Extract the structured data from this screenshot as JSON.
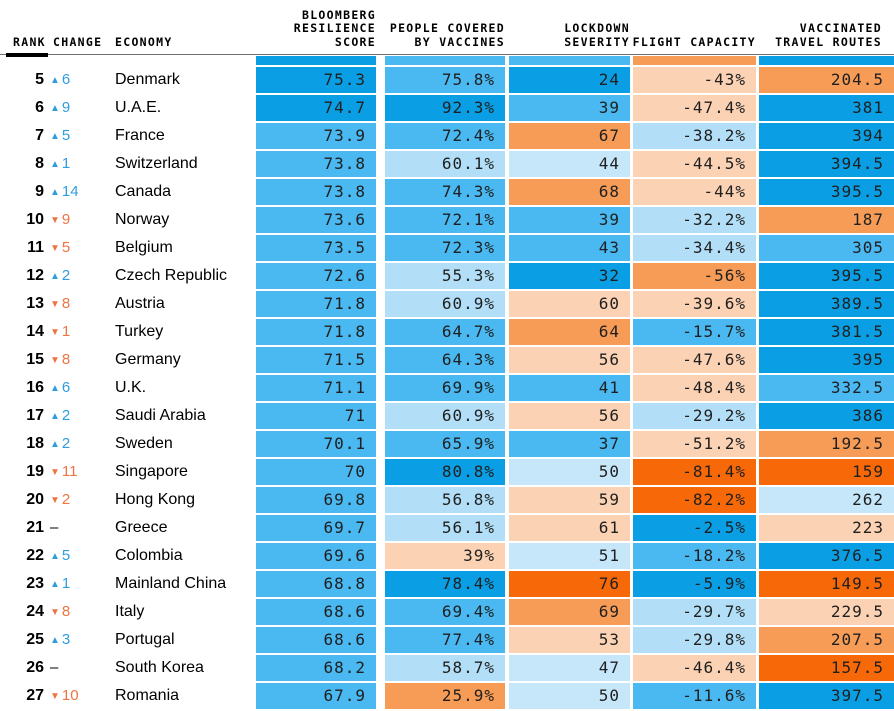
{
  "palette": {
    "b1": "#0a9fe4",
    "b2": "#4ab8f1",
    "b3": "#b2dff7",
    "b4": "#c6e7fa",
    "o1": "#f76908",
    "o2": "#f79c57",
    "o3": "#fbd2b3",
    "up": "#2f9cdf",
    "down": "#ee7442",
    "no_change": "#000000",
    "cell_text": "#1f1f1f",
    "header_text": "#000000"
  },
  "glyphs": {
    "up": "▲",
    "down": "▼",
    "none": "–"
  },
  "header": {
    "rank": "RANK",
    "change": "CHANGE",
    "economy": "ECONOMY",
    "score": "BLOOMBERG\nRESILIENCE\nSCORE",
    "vaccines": "PEOPLE COVERED\nBY VACCINES",
    "lockdown": "LOCKDOWN\nSEVERITY",
    "flight": "FLIGHT CAPACITY",
    "routes": "VACCINATED\nTRAVEL ROUTES"
  },
  "chart_data": {
    "type": "heatmap",
    "title": "Bloomberg Resilience Score ranking",
    "columns": [
      "Rank",
      "Change",
      "Economy",
      "Bloomberg Resilience Score",
      "People Covered by Vaccines",
      "Lockdown Severity",
      "Flight Capacity",
      "Vaccinated Travel Routes"
    ],
    "legend_position": "none",
    "partial_top_row": {
      "score_c": "b1",
      "vaccines_c": "b2",
      "lockdown_c": "b2",
      "flight_c": "o2",
      "routes_c": "b1"
    },
    "rows": [
      {
        "rank": "5",
        "dir": "up",
        "chg": "6",
        "economy": "Denmark",
        "score": "75.3",
        "score_c": "b1",
        "vaccines": "75.8%",
        "vaccines_c": "b2",
        "lockdown": "24",
        "lockdown_c": "b1",
        "flight": "-43%",
        "flight_c": "o3",
        "routes": "204.5",
        "routes_c": "o2"
      },
      {
        "rank": "6",
        "dir": "up",
        "chg": "9",
        "economy": "U.A.E.",
        "score": "74.7",
        "score_c": "b1",
        "vaccines": "92.3%",
        "vaccines_c": "b1",
        "lockdown": "39",
        "lockdown_c": "b2",
        "flight": "-47.4%",
        "flight_c": "o3",
        "routes": "381",
        "routes_c": "b1"
      },
      {
        "rank": "7",
        "dir": "up",
        "chg": "5",
        "economy": "France",
        "score": "73.9",
        "score_c": "b2",
        "vaccines": "72.4%",
        "vaccines_c": "b2",
        "lockdown": "67",
        "lockdown_c": "o2",
        "flight": "-38.2%",
        "flight_c": "b3",
        "routes": "394",
        "routes_c": "b1"
      },
      {
        "rank": "8",
        "dir": "up",
        "chg": "1",
        "economy": "Switzerland",
        "score": "73.8",
        "score_c": "b2",
        "vaccines": "60.1%",
        "vaccines_c": "b3",
        "lockdown": "44",
        "lockdown_c": "b4",
        "flight": "-44.5%",
        "flight_c": "o3",
        "routes": "394.5",
        "routes_c": "b1"
      },
      {
        "rank": "9",
        "dir": "up",
        "chg": "14",
        "economy": "Canada",
        "score": "73.8",
        "score_c": "b2",
        "vaccines": "74.3%",
        "vaccines_c": "b2",
        "lockdown": "68",
        "lockdown_c": "o2",
        "flight": "-44%",
        "flight_c": "o3",
        "routes": "395.5",
        "routes_c": "b1"
      },
      {
        "rank": "10",
        "dir": "down",
        "chg": "9",
        "economy": "Norway",
        "score": "73.6",
        "score_c": "b2",
        "vaccines": "72.1%",
        "vaccines_c": "b2",
        "lockdown": "39",
        "lockdown_c": "b2",
        "flight": "-32.2%",
        "flight_c": "b3",
        "routes": "187",
        "routes_c": "o2"
      },
      {
        "rank": "11",
        "dir": "down",
        "chg": "5",
        "economy": "Belgium",
        "score": "73.5",
        "score_c": "b2",
        "vaccines": "72.3%",
        "vaccines_c": "b2",
        "lockdown": "43",
        "lockdown_c": "b2",
        "flight": "-34.4%",
        "flight_c": "b3",
        "routes": "305",
        "routes_c": "b2"
      },
      {
        "rank": "12",
        "dir": "up",
        "chg": "2",
        "economy": "Czech Republic",
        "score": "72.6",
        "score_c": "b2",
        "vaccines": "55.3%",
        "vaccines_c": "b3",
        "lockdown": "32",
        "lockdown_c": "b1",
        "flight": "-56%",
        "flight_c": "o2",
        "routes": "395.5",
        "routes_c": "b1"
      },
      {
        "rank": "13",
        "dir": "down",
        "chg": "8",
        "economy": "Austria",
        "score": "71.8",
        "score_c": "b2",
        "vaccines": "60.9%",
        "vaccines_c": "b3",
        "lockdown": "60",
        "lockdown_c": "o3",
        "flight": "-39.6%",
        "flight_c": "o3",
        "routes": "389.5",
        "routes_c": "b1"
      },
      {
        "rank": "14",
        "dir": "down",
        "chg": "1",
        "economy": "Turkey",
        "score": "71.8",
        "score_c": "b2",
        "vaccines": "64.7%",
        "vaccines_c": "b2",
        "lockdown": "64",
        "lockdown_c": "o2",
        "flight": "-15.7%",
        "flight_c": "b2",
        "routes": "381.5",
        "routes_c": "b1"
      },
      {
        "rank": "15",
        "dir": "down",
        "chg": "8",
        "economy": "Germany",
        "score": "71.5",
        "score_c": "b2",
        "vaccines": "64.3%",
        "vaccines_c": "b2",
        "lockdown": "56",
        "lockdown_c": "o3",
        "flight": "-47.6%",
        "flight_c": "o3",
        "routes": "395",
        "routes_c": "b1"
      },
      {
        "rank": "16",
        "dir": "up",
        "chg": "6",
        "economy": "U.K.",
        "score": "71.1",
        "score_c": "b2",
        "vaccines": "69.9%",
        "vaccines_c": "b2",
        "lockdown": "41",
        "lockdown_c": "b2",
        "flight": "-48.4%",
        "flight_c": "o3",
        "routes": "332.5",
        "routes_c": "b2"
      },
      {
        "rank": "17",
        "dir": "up",
        "chg": "2",
        "economy": "Saudi Arabia",
        "score": "71",
        "score_c": "b2",
        "vaccines": "60.9%",
        "vaccines_c": "b3",
        "lockdown": "56",
        "lockdown_c": "o3",
        "flight": "-29.2%",
        "flight_c": "b3",
        "routes": "386",
        "routes_c": "b1"
      },
      {
        "rank": "18",
        "dir": "up",
        "chg": "2",
        "economy": "Sweden",
        "score": "70.1",
        "score_c": "b2",
        "vaccines": "65.9%",
        "vaccines_c": "b2",
        "lockdown": "37",
        "lockdown_c": "b2",
        "flight": "-51.2%",
        "flight_c": "o3",
        "routes": "192.5",
        "routes_c": "o2"
      },
      {
        "rank": "19",
        "dir": "down",
        "chg": "11",
        "economy": "Singapore",
        "score": "70",
        "score_c": "b2",
        "vaccines": "80.8%",
        "vaccines_c": "b1",
        "lockdown": "50",
        "lockdown_c": "b4",
        "flight": "-81.4%",
        "flight_c": "o1",
        "routes": "159",
        "routes_c": "o1"
      },
      {
        "rank": "20",
        "dir": "down",
        "chg": "2",
        "economy": "Hong Kong",
        "score": "69.8",
        "score_c": "b2",
        "vaccines": "56.8%",
        "vaccines_c": "b3",
        "lockdown": "59",
        "lockdown_c": "o3",
        "flight": "-82.2%",
        "flight_c": "o1",
        "routes": "262",
        "routes_c": "b4"
      },
      {
        "rank": "21",
        "dir": "none",
        "chg": "",
        "economy": "Greece",
        "score": "69.7",
        "score_c": "b2",
        "vaccines": "56.1%",
        "vaccines_c": "b3",
        "lockdown": "61",
        "lockdown_c": "o3",
        "flight": "-2.5%",
        "flight_c": "b1",
        "routes": "223",
        "routes_c": "o3"
      },
      {
        "rank": "22",
        "dir": "up",
        "chg": "5",
        "economy": "Colombia",
        "score": "69.6",
        "score_c": "b2",
        "vaccines": "39%",
        "vaccines_c": "o3",
        "lockdown": "51",
        "lockdown_c": "b4",
        "flight": "-18.2%",
        "flight_c": "b2",
        "routes": "376.5",
        "routes_c": "b1"
      },
      {
        "rank": "23",
        "dir": "up",
        "chg": "1",
        "economy": "Mainland China",
        "score": "68.8",
        "score_c": "b2",
        "vaccines": "78.4%",
        "vaccines_c": "b1",
        "lockdown": "76",
        "lockdown_c": "o1",
        "flight": "-5.9%",
        "flight_c": "b1",
        "routes": "149.5",
        "routes_c": "o1"
      },
      {
        "rank": "24",
        "dir": "down",
        "chg": "8",
        "economy": "Italy",
        "score": "68.6",
        "score_c": "b2",
        "vaccines": "69.4%",
        "vaccines_c": "b2",
        "lockdown": "69",
        "lockdown_c": "o2",
        "flight": "-29.7%",
        "flight_c": "b3",
        "routes": "229.5",
        "routes_c": "o3"
      },
      {
        "rank": "25",
        "dir": "up",
        "chg": "3",
        "economy": "Portugal",
        "score": "68.6",
        "score_c": "b2",
        "vaccines": "77.4%",
        "vaccines_c": "b2",
        "lockdown": "53",
        "lockdown_c": "o3",
        "flight": "-29.8%",
        "flight_c": "b3",
        "routes": "207.5",
        "routes_c": "o2"
      },
      {
        "rank": "26",
        "dir": "none",
        "chg": "",
        "economy": "South Korea",
        "score": "68.2",
        "score_c": "b2",
        "vaccines": "58.7%",
        "vaccines_c": "b3",
        "lockdown": "47",
        "lockdown_c": "b4",
        "flight": "-46.4%",
        "flight_c": "o3",
        "routes": "157.5",
        "routes_c": "o1"
      },
      {
        "rank": "27",
        "dir": "down",
        "chg": "10",
        "economy": "Romania",
        "score": "67.9",
        "score_c": "b2",
        "vaccines": "25.9%",
        "vaccines_c": "o2",
        "lockdown": "50",
        "lockdown_c": "b4",
        "flight": "-11.6%",
        "flight_c": "b2",
        "routes": "397.5",
        "routes_c": "b1"
      }
    ]
  }
}
